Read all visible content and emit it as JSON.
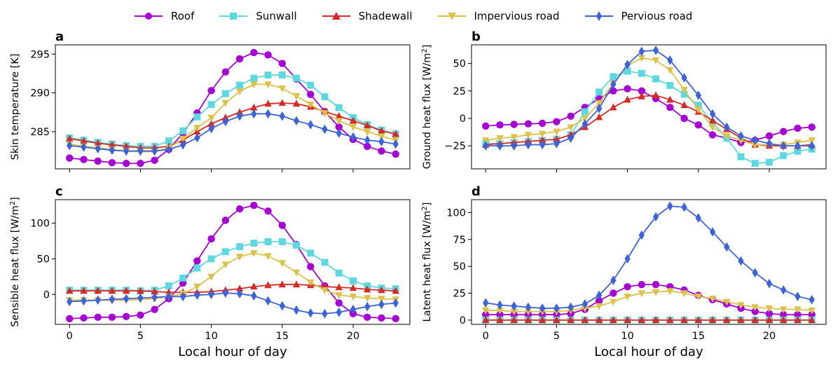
{
  "chart_data": [
    {
      "panel": "a",
      "type": "line",
      "ylabel": "Skin temperature [K]",
      "xlabel": "",
      "xlim": [
        -1,
        24
      ],
      "ylim": [
        280.2,
        296.2
      ],
      "xticks": [
        0,
        5,
        10,
        15,
        20
      ],
      "yticks": [
        285,
        290,
        295
      ],
      "x": [
        0,
        1,
        2,
        3,
        4,
        5,
        6,
        7,
        8,
        9,
        10,
        11,
        12,
        13,
        14,
        15,
        16,
        17,
        18,
        19,
        20,
        21,
        22,
        23
      ],
      "series": [
        {
          "name": "Roof",
          "values": [
            281.6,
            281.4,
            281.2,
            281.0,
            280.9,
            280.9,
            281.3,
            282.7,
            284.8,
            287.4,
            290.3,
            292.7,
            294.4,
            295.2,
            294.9,
            293.8,
            291.8,
            289.8,
            287.6,
            285.6,
            284.0,
            283.1,
            282.5,
            282.1
          ]
        },
        {
          "name": "Sunwall",
          "values": [
            284.2,
            283.9,
            283.6,
            283.4,
            283.2,
            283.1,
            283.1,
            283.8,
            285.1,
            286.9,
            288.5,
            289.9,
            291.0,
            291.9,
            292.3,
            292.3,
            291.9,
            291.0,
            289.5,
            288.1,
            286.8,
            285.9,
            285.2,
            284.7
          ]
        },
        {
          "name": "Shadewall",
          "values": [
            284.1,
            283.8,
            283.5,
            283.3,
            283.1,
            282.9,
            282.9,
            283.1,
            283.9,
            285.0,
            286.0,
            286.8,
            287.5,
            288.1,
            288.6,
            288.7,
            288.6,
            288.2,
            287.6,
            287.0,
            286.4,
            285.8,
            285.1,
            284.7
          ]
        },
        {
          "name": "Impervious road",
          "values": [
            283.4,
            283.1,
            282.9,
            282.7,
            282.5,
            282.4,
            282.4,
            282.9,
            284.1,
            285.5,
            286.8,
            288.7,
            290.2,
            291.1,
            291.1,
            290.6,
            289.6,
            288.5,
            287.4,
            286.4,
            285.6,
            285.0,
            284.4,
            283.9
          ]
        },
        {
          "name": "Pervious road",
          "values": [
            283.2,
            283.0,
            282.8,
            282.6,
            282.5,
            282.5,
            282.5,
            282.7,
            283.3,
            284.2,
            285.4,
            286.3,
            287.0,
            287.3,
            287.3,
            287.0,
            286.4,
            285.9,
            285.3,
            284.8,
            284.3,
            283.9,
            283.7,
            283.4
          ]
        }
      ]
    },
    {
      "panel": "b",
      "type": "line",
      "ylabel": "Ground heat flux [W/m",
      "ylabel_sup": "2",
      "ylabel_end": "]",
      "xlabel": "",
      "xlim": [
        -1,
        24
      ],
      "ylim": [
        -46,
        67
      ],
      "xticks": [
        0,
        5,
        10,
        15,
        20
      ],
      "yticks": [
        -25,
        0,
        25,
        50
      ],
      "x": [
        0,
        1,
        2,
        3,
        4,
        5,
        6,
        7,
        8,
        9,
        10,
        11,
        12,
        13,
        14,
        15,
        16,
        17,
        18,
        19,
        20,
        21,
        22,
        23
      ],
      "series": [
        {
          "name": "Roof",
          "values": [
            -7,
            -6,
            -5.5,
            -5,
            -4.5,
            -3,
            2,
            10,
            18,
            25,
            27,
            25,
            18,
            10,
            0,
            -6,
            -15,
            -18,
            -22,
            -20,
            -16,
            -12,
            -9,
            -8
          ]
        },
        {
          "name": "Sunwall",
          "values": [
            -23,
            -23,
            -22,
            -21,
            -20,
            -19,
            -15,
            6,
            24,
            38,
            43,
            41,
            36,
            30,
            22,
            12,
            -4,
            -18,
            -35,
            -41,
            -40,
            -34,
            -30,
            -28
          ]
        },
        {
          "name": "Shadewall",
          "values": [
            -24,
            -23,
            -22,
            -21,
            -20,
            -19,
            -15,
            -8,
            1,
            10,
            17,
            20,
            21,
            17,
            12,
            6,
            -2,
            -10,
            -18,
            -24,
            -25,
            -25,
            -25,
            -24
          ]
        },
        {
          "name": "Impervious road",
          "values": [
            -20,
            -18,
            -17,
            -15,
            -14,
            -12,
            -8,
            0,
            14,
            32,
            48,
            55,
            53,
            44,
            26,
            8,
            -8,
            -16,
            -20,
            -24,
            -24,
            -24,
            -22,
            -20
          ]
        },
        {
          "name": "Pervious road",
          "values": [
            -25,
            -25,
            -25,
            -24,
            -24,
            -23,
            -18,
            -5,
            9,
            31,
            49,
            61,
            62,
            53,
            37,
            21,
            4,
            -8,
            -16,
            -20,
            -23,
            -25,
            -25,
            -25
          ]
        }
      ]
    },
    {
      "panel": "c",
      "type": "line",
      "ylabel": "Sensible heat flux [W/m",
      "ylabel_sup": "2",
      "ylabel_end": "]",
      "xlabel": "Local hour of day",
      "xlim": [
        -1,
        24
      ],
      "ylim": [
        -42,
        133
      ],
      "xticks": [
        0,
        5,
        10,
        15,
        20
      ],
      "yticks": [
        0,
        50,
        100
      ],
      "x": [
        0,
        1,
        2,
        3,
        4,
        5,
        6,
        7,
        8,
        9,
        10,
        11,
        12,
        13,
        14,
        15,
        16,
        17,
        18,
        19,
        20,
        21,
        22,
        23
      ],
      "series": [
        {
          "name": "Roof",
          "values": [
            -34,
            -33,
            -32,
            -32,
            -31,
            -29,
            -21,
            -6,
            16,
            47,
            78,
            104,
            120,
            125,
            117,
            97,
            70,
            39,
            12,
            -12,
            -27,
            -32,
            -33,
            -34
          ]
        },
        {
          "name": "Sunwall",
          "values": [
            6,
            6,
            6,
            6,
            6,
            5,
            6,
            12,
            23,
            37,
            50,
            60,
            67,
            72,
            74,
            74,
            69,
            58,
            45,
            30,
            19,
            12,
            9,
            8
          ]
        },
        {
          "name": "Shadewall",
          "values": [
            5,
            5,
            5,
            5,
            5,
            5,
            4,
            3,
            3,
            3,
            4,
            6,
            8,
            11,
            13,
            14,
            14,
            13,
            11,
            10,
            9,
            7,
            6,
            5
          ]
        },
        {
          "name": "Impervious road",
          "values": [
            -8,
            -8,
            -8,
            -8,
            -8,
            -7,
            -6,
            -3,
            1,
            11,
            25,
            42,
            53,
            58,
            54,
            44,
            31,
            17,
            6,
            -1,
            -3,
            -5,
            -6,
            -7
          ]
        },
        {
          "name": "Pervious road",
          "values": [
            -10,
            -9,
            -8,
            -7,
            -6,
            -5,
            -4,
            -3,
            -3,
            -1,
            0,
            2,
            1,
            -2,
            -9,
            -16,
            -22,
            -26,
            -27,
            -25,
            -21,
            -17,
            -14,
            -12
          ]
        }
      ]
    },
    {
      "panel": "d",
      "type": "line",
      "ylabel": "Latent heat flux [W/m",
      "ylabel_sup": "2",
      "ylabel_end": "]",
      "xlabel": "Local hour of day",
      "xlim": [
        -1,
        24
      ],
      "ylim": [
        -4,
        112
      ],
      "xticks": [
        0,
        5,
        10,
        15,
        20
      ],
      "yticks": [
        0,
        25,
        50,
        75,
        100
      ],
      "x": [
        0,
        1,
        2,
        3,
        4,
        5,
        6,
        7,
        8,
        9,
        10,
        11,
        12,
        13,
        14,
        15,
        16,
        17,
        18,
        19,
        20,
        21,
        22,
        23
      ],
      "series": [
        {
          "name": "Roof",
          "values": [
            5,
            5,
            5,
            5,
            5,
            5,
            6,
            10,
            18,
            25,
            31,
            33,
            33,
            31,
            28,
            23,
            19,
            15,
            11,
            8,
            6,
            5,
            5,
            5
          ]
        },
        {
          "name": "Sunwall",
          "values": [
            0,
            0,
            0,
            0,
            0,
            0,
            0,
            0,
            0,
            0,
            0,
            0,
            0,
            0,
            0,
            0,
            0,
            0,
            0,
            0,
            0,
            0,
            0,
            0
          ]
        },
        {
          "name": "Shadewall",
          "values": [
            0,
            0,
            0,
            0,
            0,
            0,
            0,
            0,
            0,
            0,
            0,
            0,
            0,
            0,
            0,
            0,
            0,
            0,
            0,
            0,
            0,
            0,
            0,
            0
          ]
        },
        {
          "name": "Impervious road",
          "values": [
            9,
            9,
            8,
            8,
            8,
            8,
            9,
            11,
            13,
            17,
            22,
            25,
            26,
            27,
            25,
            22,
            20,
            17,
            14,
            12,
            11,
            10,
            10,
            9
          ]
        },
        {
          "name": "Pervious road",
          "values": [
            16,
            14,
            13,
            12,
            11,
            11,
            12,
            15,
            23,
            37,
            57,
            79,
            96,
            106,
            105,
            95,
            82,
            68,
            55,
            44,
            34,
            28,
            22,
            19
          ]
        }
      ]
    }
  ],
  "legend": {
    "placement": "top-center",
    "items": [
      {
        "label": "Roof",
        "color": "#a700d4",
        "marker": "circle"
      },
      {
        "label": "Sunwall",
        "color": "#5ed8e0",
        "marker": "square"
      },
      {
        "label": "Shadewall",
        "color": "#d62a27",
        "marker": "triangle-up"
      },
      {
        "label": "Impervious road",
        "color": "#dcc24a",
        "marker": "triangle-down"
      },
      {
        "label": "Pervious road",
        "color": "#3d63d9",
        "marker": "diamond"
      }
    ]
  },
  "grid": false
}
